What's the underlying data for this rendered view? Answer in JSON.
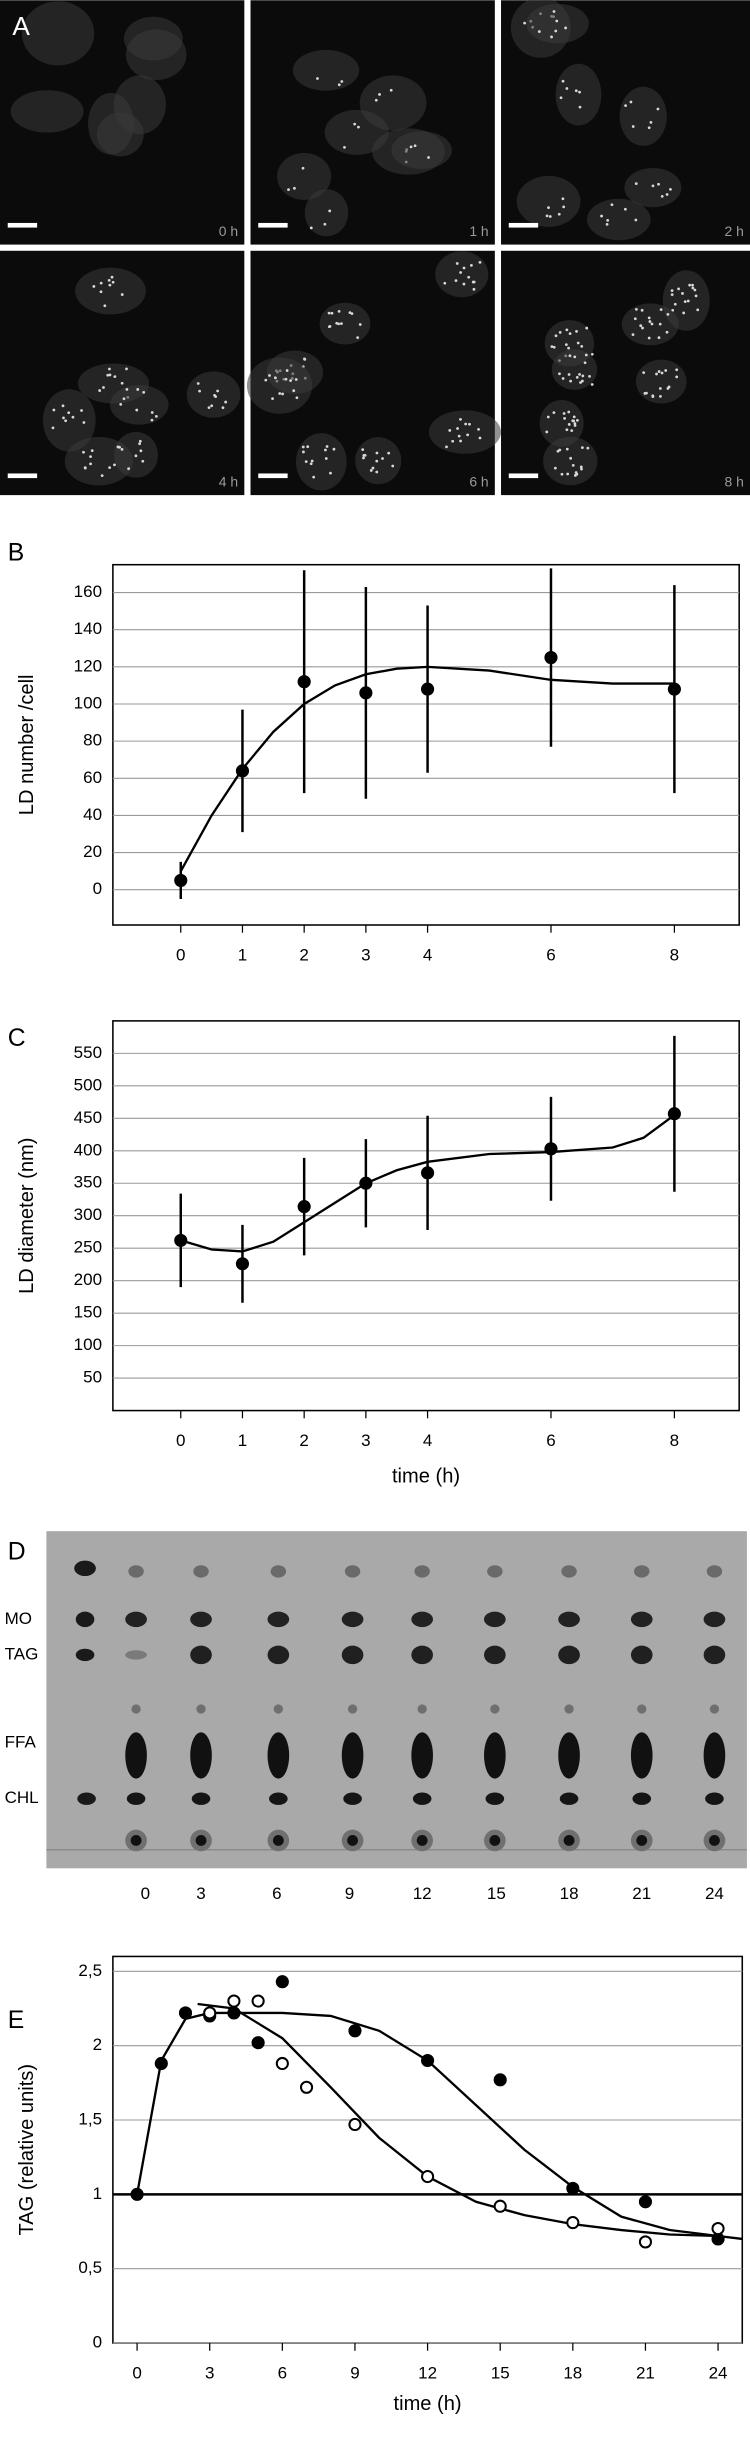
{
  "panel_a": {
    "letter": "A",
    "labels": [
      "0 h",
      "1 h",
      "2 h",
      "4 h",
      "6 h",
      "8 h"
    ]
  },
  "panel_d": {
    "letter": "D",
    "band_labels": [
      "MO",
      "TAG",
      "FFA",
      "CHL"
    ],
    "lane_labels": [
      "0",
      "3",
      "6",
      "9",
      "12",
      "15",
      "18",
      "21",
      "24"
    ]
  },
  "chart_data": [
    {
      "type": "scatter",
      "panel_label": "B",
      "y_label": "LD number /cell",
      "xlim": [
        -1.1,
        9.05
      ],
      "xticks": [
        0,
        1,
        2,
        3,
        4,
        6,
        8
      ],
      "ylim": [
        -19,
        175
      ],
      "yticks": [
        0,
        20,
        40,
        60,
        80,
        100,
        120,
        140,
        160
      ],
      "grid": true,
      "series": [
        {
          "color": "#000000",
          "marker": "filled",
          "x": [
            0,
            1,
            2,
            3,
            4,
            6,
            8
          ],
          "values": [
            5,
            64,
            112,
            106,
            108,
            125,
            108
          ],
          "errors": [
            10,
            33,
            60,
            57,
            45,
            48,
            56
          ]
        }
      ],
      "fit_lines": [
        {
          "color": "#000000",
          "x": [
            0,
            0.5,
            1,
            1.5,
            2,
            2.5,
            3,
            3.5,
            4,
            5,
            6,
            7,
            8
          ],
          "values": [
            10,
            40,
            65,
            85,
            100,
            110,
            116,
            119,
            120,
            118,
            113,
            111,
            111
          ]
        }
      ]
    },
    {
      "type": "scatter",
      "panel_label": "C",
      "y_label": "LD diameter (nm)",
      "x_label": "time (h)",
      "xlim": [
        -1.1,
        9.05
      ],
      "xticks": [
        0,
        1,
        2,
        3,
        4,
        6,
        8
      ],
      "ylim": [
        0,
        600
      ],
      "yticks": [
        50,
        100,
        150,
        200,
        250,
        300,
        350,
        400,
        450,
        500,
        550
      ],
      "grid": true,
      "series": [
        {
          "color": "#000000",
          "marker": "filled",
          "x": [
            0,
            1,
            2,
            3,
            4,
            6,
            8
          ],
          "values": [
            262,
            226,
            314,
            350,
            366,
            403,
            457
          ],
          "errors": [
            72,
            60,
            75,
            68,
            88,
            80,
            120
          ]
        }
      ],
      "fit_lines": [
        {
          "color": "#000000",
          "x": [
            0,
            0.5,
            1,
            1.5,
            2,
            2.5,
            3,
            3.5,
            4,
            5,
            6,
            7,
            7.5,
            8
          ],
          "values": [
            262,
            248,
            245,
            260,
            290,
            320,
            350,
            370,
            383,
            395,
            398,
            405,
            420,
            455
          ]
        }
      ]
    },
    {
      "type": "scatter",
      "panel_label": "E",
      "y_label": "TAG (relative units)",
      "x_label": "time (h)",
      "xlim": [
        -1,
        25
      ],
      "xticks": [
        0,
        3,
        6,
        9,
        12,
        15,
        18,
        21,
        24
      ],
      "ylim": [
        0,
        2.6
      ],
      "yticks": [
        0,
        {
          "value": 0.5,
          "label": "0,5"
        },
        1,
        {
          "value": 1.5,
          "label": "1,5"
        },
        2,
        {
          "value": 2.5,
          "label": "2,5"
        }
      ],
      "grid": true,
      "reference_line": 1,
      "series": [
        {
          "color": "#000000",
          "marker": "filled",
          "x": [
            0,
            1,
            2,
            3,
            4,
            5,
            6,
            9,
            12,
            15,
            18,
            21,
            24
          ],
          "values": [
            1,
            1.88,
            2.22,
            2.2,
            2.22,
            2.02,
            2.43,
            2.1,
            1.9,
            1.77,
            1.04,
            0.95,
            0.7
          ]
        },
        {
          "color": "#000000",
          "marker": "open",
          "x": [
            3,
            4,
            5,
            6,
            7,
            9,
            12,
            15,
            18,
            21,
            24
          ],
          "values": [
            2.22,
            2.3,
            2.3,
            1.88,
            1.72,
            1.47,
            1.12,
            0.92,
            0.81,
            0.68,
            0.77
          ]
        }
      ],
      "fit_lines": [
        {
          "color": "#000000",
          "x": [
            0,
            1,
            2,
            3,
            4,
            6,
            8,
            10,
            12,
            14,
            16,
            18,
            20,
            22,
            24
          ],
          "values": [
            1,
            1.9,
            2.18,
            2.22,
            2.22,
            2.22,
            2.2,
            2.1,
            1.9,
            1.6,
            1.3,
            1.05,
            0.85,
            0.76,
            0.72
          ]
        },
        {
          "color": "#000000",
          "x": [
            2.5,
            4,
            6,
            8,
            10,
            12,
            14,
            16,
            18,
            20,
            22,
            24,
            25
          ],
          "values": [
            2.28,
            2.25,
            2.05,
            1.72,
            1.38,
            1.12,
            0.95,
            0.86,
            0.8,
            0.76,
            0.73,
            0.72,
            0.7
          ]
        }
      ]
    }
  ]
}
